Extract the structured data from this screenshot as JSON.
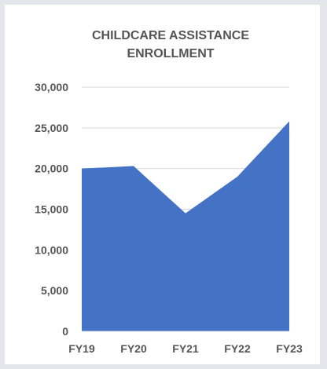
{
  "colors": {
    "page_background": "#e4e6eb",
    "card_background": "#ffffff",
    "area_fill": "#4472c4",
    "gridline": "#d9d9d9",
    "text": "#555555"
  },
  "chart_data": {
    "type": "area",
    "title_lines": [
      "CHILDCARE ASSISTANCE",
      "ENROLLMENT"
    ],
    "categories": [
      "FY19",
      "FY20",
      "FY21",
      "FY22",
      "FY23"
    ],
    "series": [
      {
        "values": [
          20000,
          20300,
          14500,
          19000,
          25800
        ]
      }
    ],
    "ylim": [
      0,
      30000
    ],
    "yticks": [
      "0",
      "5,000",
      "10,000",
      "15,000",
      "20,000",
      "25,000",
      "30,000"
    ],
    "ytick_values": [
      0,
      5000,
      10000,
      15000,
      20000,
      25000,
      30000
    ],
    "grid": true,
    "legend": "none",
    "xlabel": "",
    "ylabel": ""
  }
}
